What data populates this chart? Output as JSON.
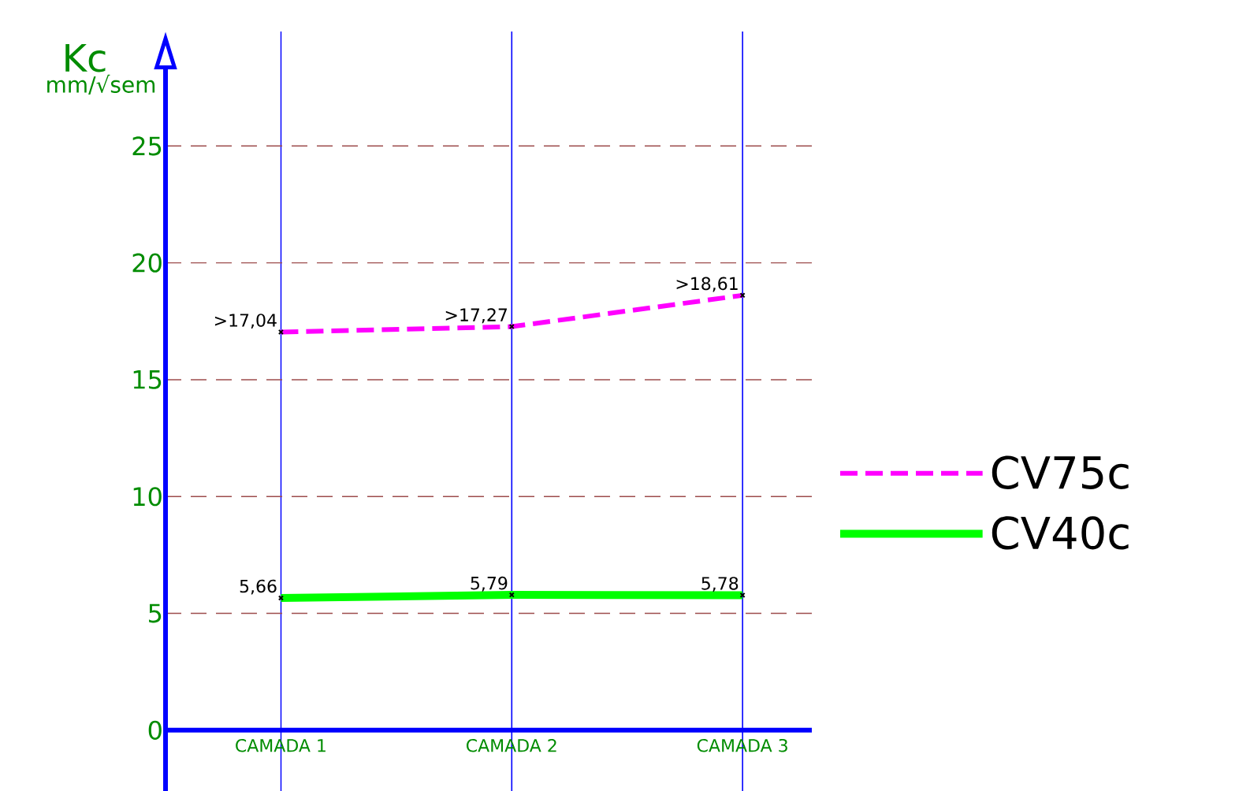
{
  "chart_data": {
    "type": "line",
    "ylabel": "Kc",
    "annotations": [
      "mm/√sem"
    ],
    "categories": [
      "CAMADA 1",
      "CAMADA 2",
      "CAMADA 3"
    ],
    "series": [
      {
        "name": "CV75c",
        "color": "#ff00ff",
        "line_style": "dashed",
        "values": [
          17.04,
          17.27,
          18.61
        ],
        "value_labels": [
          ">17,04",
          ">17,27",
          ">18,61"
        ]
      },
      {
        "name": "CV40c",
        "color": "#00ff00",
        "line_style": "solid",
        "values": [
          5.66,
          5.79,
          5.78
        ],
        "value_labels": [
          "5,66",
          "5,79",
          "5,78"
        ]
      }
    ],
    "ylim": [
      -2.6,
      29.9
    ],
    "yticks": [
      0,
      5,
      10,
      15,
      20,
      25
    ],
    "grid": true,
    "legend": "right",
    "marker": "cross"
  }
}
